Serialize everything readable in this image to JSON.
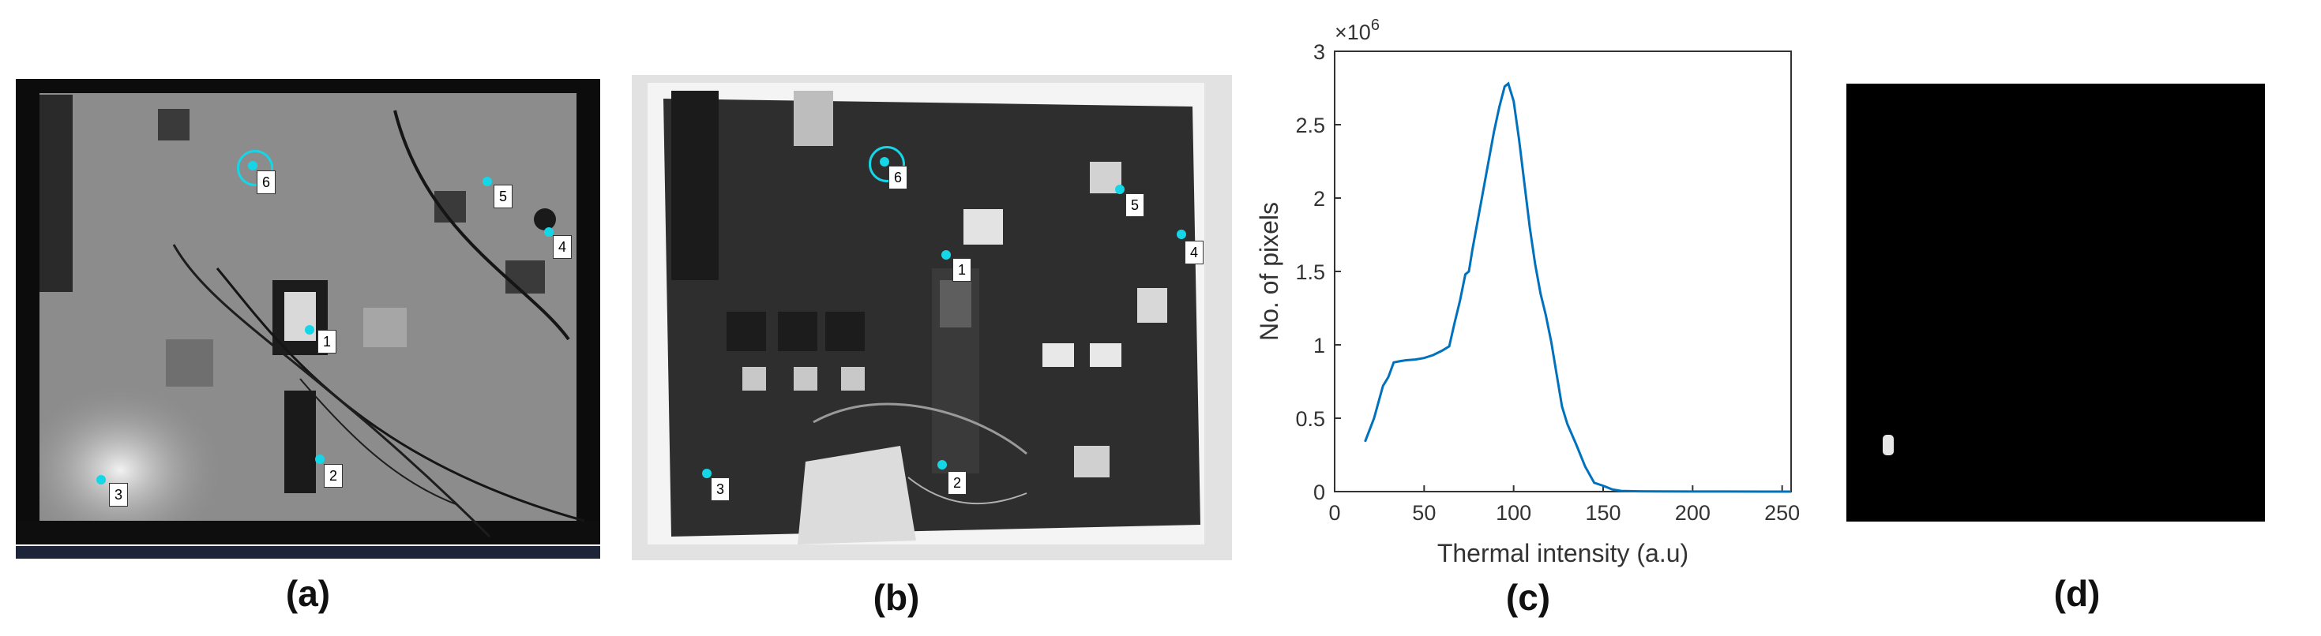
{
  "captions": {
    "a": "(a)",
    "b": "(b)",
    "c": "(c)",
    "d": "(d)"
  },
  "markers_a": [
    "1",
    "2",
    "3",
    "4",
    "5",
    "6"
  ],
  "markers_b": [
    "1",
    "2",
    "3",
    "4",
    "5",
    "6"
  ],
  "colors": {
    "marker": "#15d6e6",
    "line": "#0072bd",
    "axis": "#333333",
    "mask_background": "#000000",
    "mask_blob": "#e6e6e6"
  },
  "chart_data": {
    "type": "line",
    "title": "",
    "xlabel": "Thermal intensity (a.u)",
    "ylabel": "No. of pixels",
    "y_exponent_label": "×10",
    "y_exponent_power": "6",
    "xlim": [
      0,
      255
    ],
    "ylim": [
      0,
      3000000
    ],
    "xticks": [
      0,
      50,
      100,
      150,
      200,
      250
    ],
    "yticks": [
      0,
      500000,
      1000000,
      1500000,
      2000000,
      2500000,
      3000000
    ],
    "xtick_labels": [
      "0",
      "50",
      "100",
      "150",
      "200",
      "250"
    ],
    "ytick_labels": [
      "0",
      "0.5",
      "1",
      "1.5",
      "2",
      "2.5",
      "3"
    ],
    "grid": false,
    "series": [
      {
        "x": [
          17,
          22,
          27,
          30,
          33,
          37,
          40,
          45,
          50,
          55,
          60,
          64,
          67,
          70,
          73,
          75,
          77,
          80,
          83,
          86,
          89,
          92,
          95,
          97,
          100,
          103,
          106,
          109,
          112,
          115,
          118,
          121,
          124,
          127,
          130,
          135,
          140,
          145,
          150,
          155,
          160,
          165,
          170,
          180,
          200,
          220,
          240,
          255
        ],
        "y": [
          340000,
          500000,
          720000,
          780000,
          880000,
          890000,
          895000,
          900000,
          910000,
          930000,
          960000,
          990000,
          1150000,
          1300000,
          1480000,
          1500000,
          1650000,
          1850000,
          2050000,
          2250000,
          2450000,
          2620000,
          2760000,
          2780000,
          2660000,
          2400000,
          2100000,
          1800000,
          1550000,
          1350000,
          1200000,
          1020000,
          800000,
          580000,
          460000,
          320000,
          170000,
          60000,
          40000,
          15000,
          5000,
          3000,
          2000,
          1000,
          500,
          300,
          100,
          0
        ]
      }
    ]
  }
}
